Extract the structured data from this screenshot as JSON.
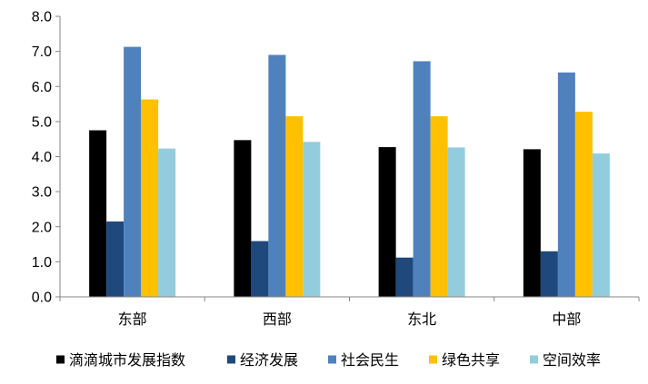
{
  "chart_data": {
    "type": "bar",
    "categories": [
      "东部",
      "西部",
      "东北",
      "中部"
    ],
    "series": [
      {
        "name": "滴滴城市发展指数",
        "color": "#000000",
        "values": [
          4.75,
          4.47,
          4.27,
          4.21
        ]
      },
      {
        "name": "经济发展",
        "color": "#1f497d",
        "values": [
          2.15,
          1.59,
          1.12,
          1.3
        ]
      },
      {
        "name": "社会民生",
        "color": "#4f81bd",
        "values": [
          7.13,
          6.9,
          6.72,
          6.4
        ]
      },
      {
        "name": "绿色共享",
        "color": "#ffc000",
        "values": [
          5.63,
          5.15,
          5.15,
          5.28
        ]
      },
      {
        "name": "空间效率",
        "color": "#93cddd",
        "values": [
          4.23,
          4.42,
          4.26,
          4.09
        ]
      }
    ],
    "yticks": [
      "0.0",
      "1.0",
      "2.0",
      "3.0",
      "4.0",
      "5.0",
      "6.0",
      "7.0",
      "8.0"
    ],
    "ylim": [
      0,
      8
    ],
    "grid": false,
    "legend": "bottom"
  }
}
